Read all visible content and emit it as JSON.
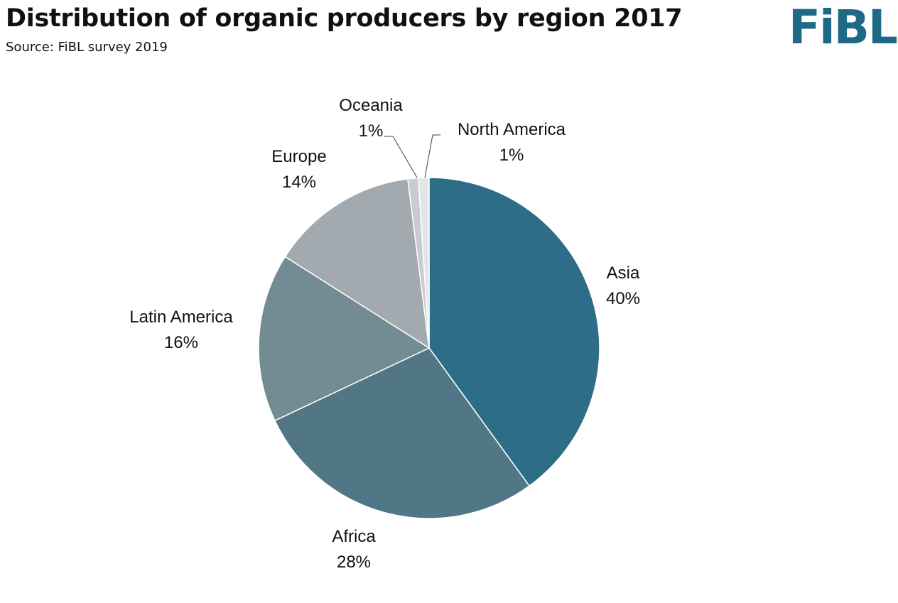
{
  "header": {
    "title": "Distribution of organic producers by region 2017",
    "subtitle": "Source: FiBL survey 2019",
    "logo_text": "FiBL",
    "logo_color": "#1e6a86"
  },
  "chart_data": {
    "type": "pie",
    "title": "Distribution of organic producers by region 2017",
    "subtitle": "Source: FiBL survey 2019",
    "start_angle_deg": 0,
    "direction": "clockwise",
    "slices": [
      {
        "label": "Asia",
        "percent_label": "40%",
        "value": 40,
        "color": "#2e6d87"
      },
      {
        "label": "Africa",
        "percent_label": "28%",
        "value": 28,
        "color": "#517787"
      },
      {
        "label": "Latin America",
        "percent_label": "16%",
        "value": 16,
        "color": "#738b93"
      },
      {
        "label": "Europe",
        "percent_label": "14%",
        "value": 14,
        "color": "#a3aaaf"
      },
      {
        "label": "Oceania",
        "percent_label": "1%",
        "value": 1,
        "color": "#c8ccd0"
      },
      {
        "label": "North America",
        "percent_label": "1%",
        "value": 1,
        "color": "#e3e6e9"
      }
    ],
    "legend": "none",
    "data_labels": "outside"
  }
}
